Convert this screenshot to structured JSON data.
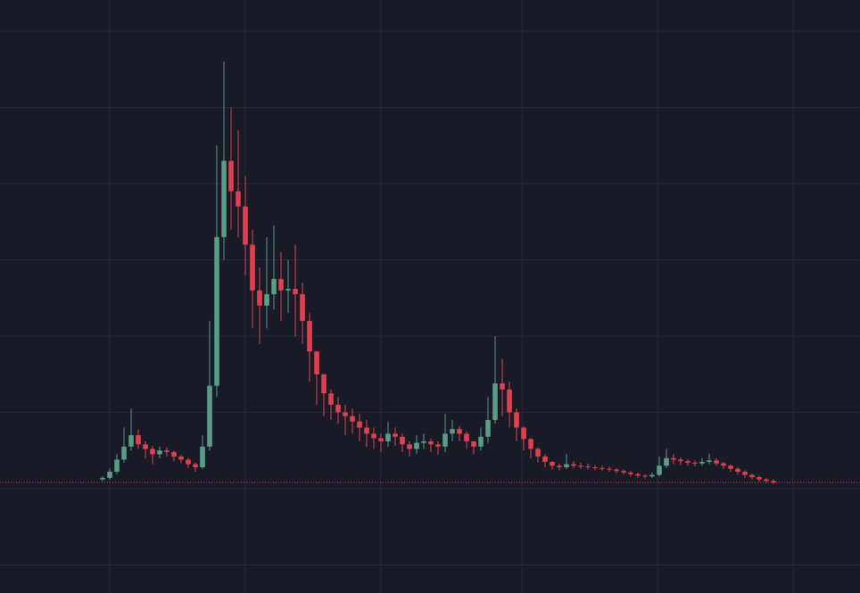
{
  "chart_data": {
    "type": "candlestick",
    "x": [
      0,
      1,
      2,
      3,
      4,
      5,
      6,
      7,
      8,
      9,
      10,
      11,
      12,
      13,
      14,
      15,
      16,
      17,
      18,
      19,
      20,
      21,
      22,
      23,
      24,
      25,
      26,
      27,
      28,
      29,
      30,
      31,
      32,
      33,
      34,
      35,
      36,
      37,
      38,
      39,
      40,
      41,
      42,
      43,
      44,
      45,
      46,
      47,
      48,
      49,
      50,
      51,
      52,
      53,
      54,
      55,
      56,
      57,
      58,
      59,
      60,
      61,
      62,
      63,
      64,
      65,
      66,
      67,
      68,
      69,
      70,
      71,
      72,
      73,
      74,
      75,
      76,
      77,
      78,
      79,
      80,
      81,
      82,
      83,
      84,
      85,
      86,
      87,
      88,
      89,
      90,
      91,
      92,
      93,
      94
    ],
    "open": [
      0.12,
      0.14,
      0.22,
      0.38,
      0.55,
      0.7,
      0.58,
      0.52,
      0.45,
      0.5,
      0.48,
      0.42,
      0.38,
      0.32,
      0.28,
      0.55,
      1.35,
      3.3,
      4.3,
      3.9,
      3.7,
      3.2,
      2.6,
      2.4,
      2.55,
      2.75,
      2.6,
      2.62,
      2.55,
      2.2,
      1.8,
      1.5,
      1.25,
      1.1,
      1.0,
      0.95,
      0.88,
      0.8,
      0.72,
      0.66,
      0.62,
      0.72,
      0.68,
      0.58,
      0.52,
      0.6,
      0.62,
      0.58,
      0.55,
      0.72,
      0.78,
      0.72,
      0.62,
      0.55,
      0.68,
      0.9,
      1.38,
      1.3,
      1.0,
      0.8,
      0.65,
      0.52,
      0.42,
      0.35,
      0.3,
      0.28,
      0.32,
      0.3,
      0.29,
      0.28,
      0.27,
      0.26,
      0.25,
      0.23,
      0.21,
      0.19,
      0.17,
      0.16,
      0.18,
      0.3,
      0.4,
      0.38,
      0.36,
      0.34,
      0.33,
      0.35,
      0.37,
      0.33,
      0.3,
      0.26,
      0.22,
      0.18,
      0.15,
      0.12,
      0.1
    ],
    "high": [
      0.16,
      0.26,
      0.45,
      0.8,
      1.05,
      0.78,
      0.62,
      0.56,
      0.55,
      0.54,
      0.5,
      0.44,
      0.4,
      0.34,
      0.7,
      2.2,
      4.5,
      5.6,
      5.0,
      4.7,
      4.1,
      3.4,
      2.9,
      3.3,
      3.45,
      3.1,
      3.0,
      3.2,
      2.7,
      2.3,
      1.8,
      1.5,
      1.3,
      1.2,
      1.1,
      1.05,
      0.98,
      0.9,
      0.8,
      0.72,
      0.88,
      0.8,
      0.72,
      0.62,
      0.7,
      0.72,
      0.66,
      0.62,
      0.98,
      0.9,
      0.82,
      0.75,
      0.62,
      0.8,
      1.2,
      2.0,
      1.7,
      1.4,
      1.05,
      0.82,
      0.66,
      0.54,
      0.45,
      0.36,
      0.33,
      0.45,
      0.36,
      0.34,
      0.33,
      0.31,
      0.3,
      0.29,
      0.27,
      0.25,
      0.23,
      0.21,
      0.19,
      0.21,
      0.42,
      0.52,
      0.45,
      0.41,
      0.38,
      0.37,
      0.4,
      0.46,
      0.4,
      0.35,
      0.32,
      0.28,
      0.24,
      0.2,
      0.17,
      0.14,
      0.12
    ],
    "low": [
      0.1,
      0.12,
      0.19,
      0.34,
      0.5,
      0.52,
      0.4,
      0.32,
      0.4,
      0.42,
      0.36,
      0.33,
      0.27,
      0.22,
      0.26,
      0.5,
      1.2,
      3.0,
      3.4,
      3.3,
      2.8,
      2.1,
      1.9,
      2.1,
      2.35,
      2.2,
      2.3,
      2.0,
      1.9,
      1.4,
      1.1,
      0.95,
      0.9,
      0.85,
      0.7,
      0.72,
      0.62,
      0.55,
      0.52,
      0.48,
      0.55,
      0.56,
      0.48,
      0.42,
      0.46,
      0.52,
      0.48,
      0.44,
      0.48,
      0.62,
      0.62,
      0.52,
      0.45,
      0.5,
      0.6,
      0.85,
      0.95,
      0.8,
      0.62,
      0.5,
      0.4,
      0.34,
      0.28,
      0.25,
      0.24,
      0.26,
      0.27,
      0.26,
      0.25,
      0.24,
      0.23,
      0.22,
      0.2,
      0.18,
      0.16,
      0.14,
      0.13,
      0.14,
      0.16,
      0.27,
      0.32,
      0.31,
      0.3,
      0.29,
      0.3,
      0.32,
      0.3,
      0.26,
      0.22,
      0.18,
      0.14,
      0.12,
      0.09,
      0.07,
      0.06
    ],
    "close": [
      0.14,
      0.22,
      0.38,
      0.55,
      0.7,
      0.58,
      0.52,
      0.45,
      0.5,
      0.48,
      0.42,
      0.38,
      0.32,
      0.28,
      0.55,
      1.35,
      3.3,
      4.3,
      3.9,
      3.7,
      3.2,
      2.6,
      2.4,
      2.55,
      2.75,
      2.6,
      2.62,
      2.55,
      2.2,
      1.8,
      1.5,
      1.25,
      1.1,
      1.0,
      0.95,
      0.88,
      0.8,
      0.72,
      0.66,
      0.62,
      0.72,
      0.68,
      0.58,
      0.52,
      0.6,
      0.62,
      0.58,
      0.55,
      0.72,
      0.78,
      0.72,
      0.62,
      0.55,
      0.68,
      0.9,
      1.38,
      1.3,
      1.0,
      0.8,
      0.65,
      0.52,
      0.42,
      0.35,
      0.3,
      0.28,
      0.32,
      0.3,
      0.29,
      0.28,
      0.27,
      0.26,
      0.25,
      0.23,
      0.21,
      0.19,
      0.17,
      0.16,
      0.18,
      0.3,
      0.4,
      0.38,
      0.36,
      0.34,
      0.33,
      0.35,
      0.37,
      0.33,
      0.3,
      0.26,
      0.22,
      0.18,
      0.15,
      0.12,
      0.1,
      0.08
    ],
    "xlim": [
      -14.375,
      106.125
    ],
    "xticks": [
      1,
      20,
      39,
      58.75,
      77.75,
      96.75
    ],
    "ylim": [
      -1.37,
      6.41
    ],
    "yticks": [
      -1,
      0,
      1,
      2,
      3,
      4,
      5,
      6
    ],
    "grid": true,
    "up_color": "#5a9e86",
    "down_color": "#e0404f",
    "price_line": 0.08
  }
}
